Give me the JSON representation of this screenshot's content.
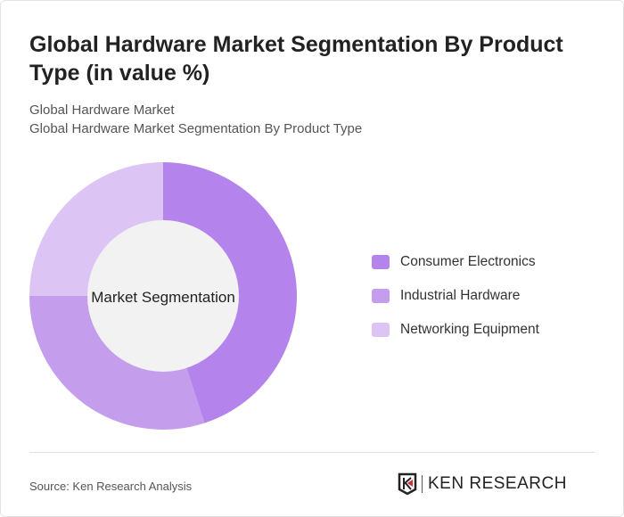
{
  "title": "Global Hardware Market Segmentation By Product Type (in value %)",
  "subtitle1": "Global Hardware Market",
  "subtitle2": "Global Hardware Market Segmentation By Product Type",
  "source": "Source: Ken Research Analysis",
  "logo_text": "KEN RESEARCH",
  "chart_data": {
    "type": "pie",
    "variant": "donut",
    "center_label": "Market Segmentation",
    "legend_position": "right",
    "categories": [
      "Consumer Electronics",
      "Industrial Hardware",
      "Networking Equipment"
    ],
    "values": [
      45,
      30,
      25
    ],
    "colors": [
      "#b583ec",
      "#c59ded",
      "#dcc5f5"
    ]
  }
}
